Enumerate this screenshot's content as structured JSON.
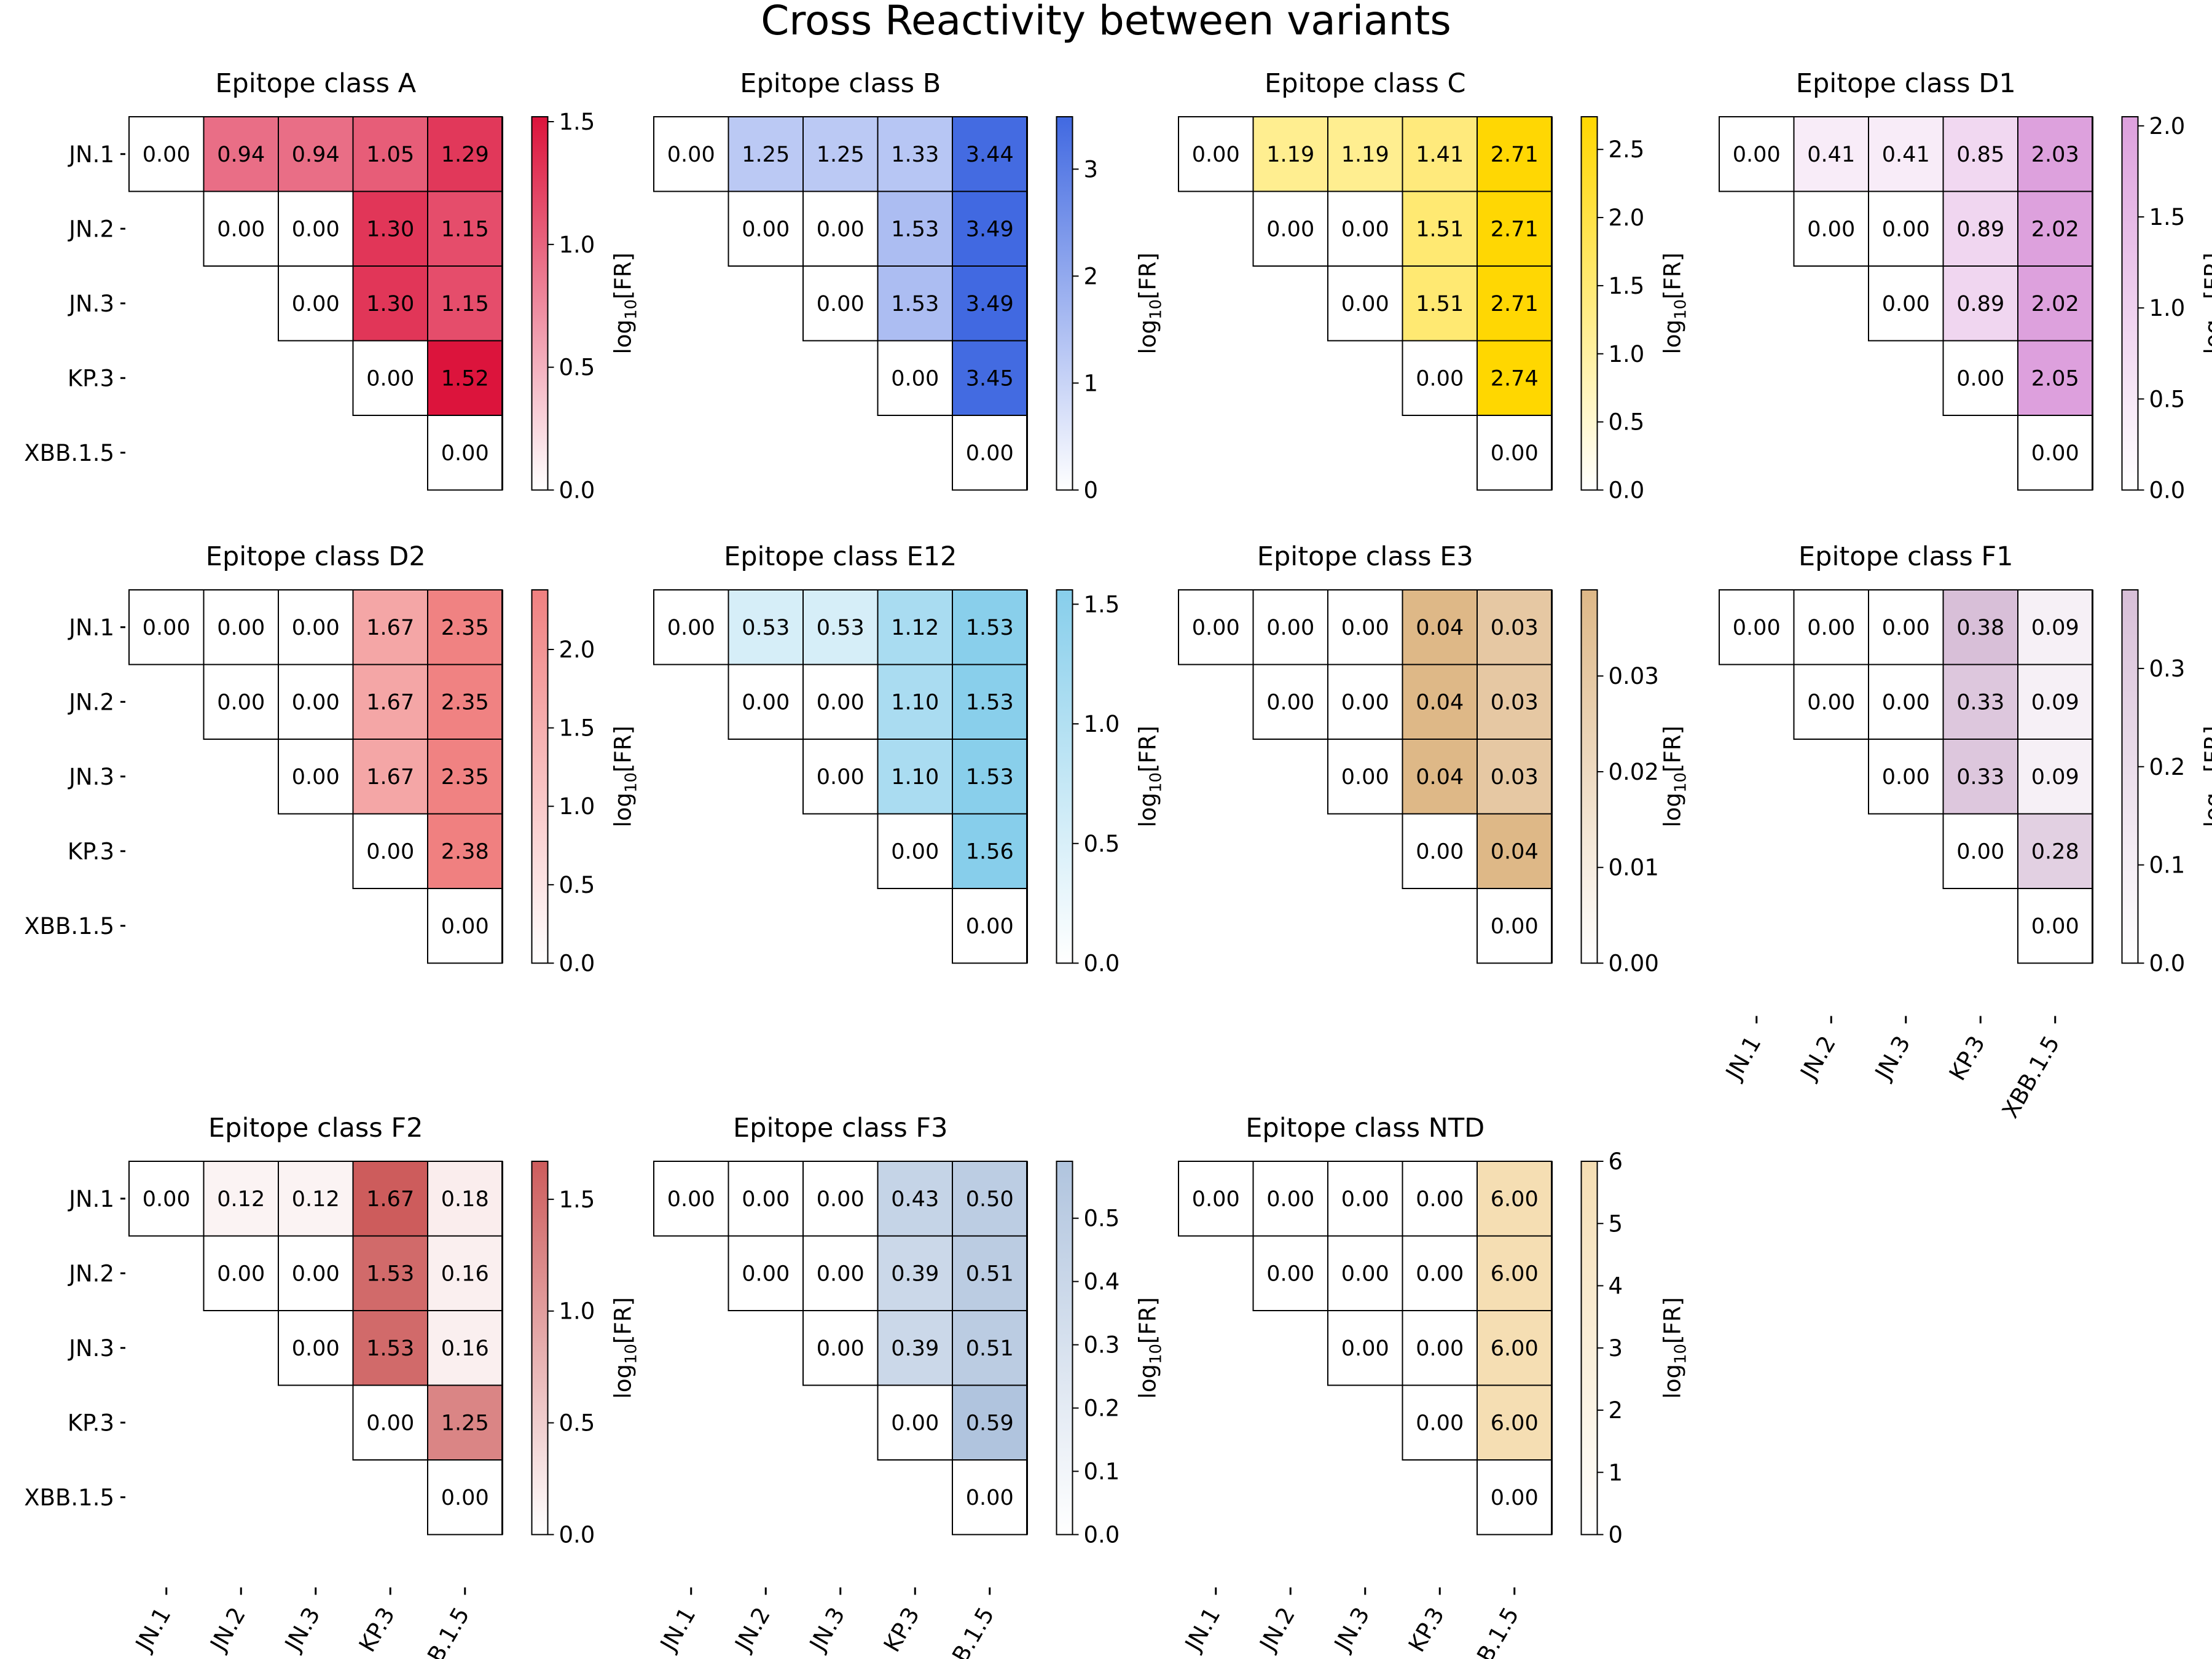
{
  "title": "Cross Reactivity between variants",
  "variants": [
    "JN.1",
    "JN.2",
    "JN.3",
    "KP.3",
    "XBB.1.5"
  ],
  "colorbar_label": {
    "prefix": "log",
    "sub": "10",
    "suffix": "[FR]"
  },
  "chart_data": [
    {
      "type": "heatmap",
      "title": "Epitope class A",
      "color": "#dc143c",
      "matrix": [
        [
          0.0,
          0.94,
          0.94,
          1.05,
          1.29
        ],
        [
          null,
          0.0,
          0.0,
          1.3,
          1.15
        ],
        [
          null,
          null,
          0.0,
          1.3,
          1.15
        ],
        [
          null,
          null,
          null,
          0.0,
          1.52
        ],
        [
          null,
          null,
          null,
          null,
          0.0
        ]
      ],
      "value_labels": [
        [
          "0.00",
          "0.94",
          "0.94",
          "1.05",
          "1.29"
        ],
        [
          null,
          "0.00",
          "0.00",
          "1.30",
          "1.15"
        ],
        [
          null,
          null,
          "0.00",
          "1.30",
          "1.15"
        ],
        [
          null,
          null,
          null,
          "0.00",
          "1.52"
        ],
        [
          null,
          null,
          null,
          null,
          "0.00"
        ]
      ],
      "vmin": 0,
      "vmax": 1.52,
      "cbar_ticks": [
        "0.0",
        "0.5",
        "1.0",
        "1.5"
      ],
      "cbar_tick_values": [
        0,
        0.5,
        1.0,
        1.5
      ]
    },
    {
      "type": "heatmap",
      "title": "Epitope class B",
      "color": "#4169e1",
      "matrix": [
        [
          0.0,
          1.25,
          1.25,
          1.33,
          3.44
        ],
        [
          null,
          0.0,
          0.0,
          1.53,
          3.49
        ],
        [
          null,
          null,
          0.0,
          1.53,
          3.49
        ],
        [
          null,
          null,
          null,
          0.0,
          3.45
        ],
        [
          null,
          null,
          null,
          null,
          0.0
        ]
      ],
      "value_labels": [
        [
          "0.00",
          "1.25",
          "1.25",
          "1.33",
          "3.44"
        ],
        [
          null,
          "0.00",
          "0.00",
          "1.53",
          "3.49"
        ],
        [
          null,
          null,
          "0.00",
          "1.53",
          "3.49"
        ],
        [
          null,
          null,
          null,
          "0.00",
          "3.45"
        ],
        [
          null,
          null,
          null,
          null,
          "0.00"
        ]
      ],
      "vmin": 0,
      "vmax": 3.49,
      "cbar_ticks": [
        "0",
        "1",
        "2",
        "3"
      ],
      "cbar_tick_values": [
        0,
        1,
        2,
        3
      ]
    },
    {
      "type": "heatmap",
      "title": "Epitope class C",
      "color": "#ffd700",
      "matrix": [
        [
          0.0,
          1.19,
          1.19,
          1.41,
          2.71
        ],
        [
          null,
          0.0,
          0.0,
          1.51,
          2.71
        ],
        [
          null,
          null,
          0.0,
          1.51,
          2.71
        ],
        [
          null,
          null,
          null,
          0.0,
          2.74
        ],
        [
          null,
          null,
          null,
          null,
          0.0
        ]
      ],
      "value_labels": [
        [
          "0.00",
          "1.19",
          "1.19",
          "1.41",
          "2.71"
        ],
        [
          null,
          "0.00",
          "0.00",
          "1.51",
          "2.71"
        ],
        [
          null,
          null,
          "0.00",
          "1.51",
          "2.71"
        ],
        [
          null,
          null,
          null,
          "0.00",
          "2.74"
        ],
        [
          null,
          null,
          null,
          null,
          "0.00"
        ]
      ],
      "vmin": 0,
      "vmax": 2.74,
      "cbar_ticks": [
        "0.0",
        "0.5",
        "1.0",
        "1.5",
        "2.0",
        "2.5"
      ],
      "cbar_tick_values": [
        0,
        0.5,
        1.0,
        1.5,
        2.0,
        2.5
      ]
    },
    {
      "type": "heatmap",
      "title": "Epitope class D1",
      "color": "#dda0dd",
      "matrix": [
        [
          0.0,
          0.41,
          0.41,
          0.85,
          2.03
        ],
        [
          null,
          0.0,
          0.0,
          0.89,
          2.02
        ],
        [
          null,
          null,
          0.0,
          0.89,
          2.02
        ],
        [
          null,
          null,
          null,
          0.0,
          2.05
        ],
        [
          null,
          null,
          null,
          null,
          0.0
        ]
      ],
      "value_labels": [
        [
          "0.00",
          "0.41",
          "0.41",
          "0.85",
          "2.03"
        ],
        [
          null,
          "0.00",
          "0.00",
          "0.89",
          "2.02"
        ],
        [
          null,
          null,
          "0.00",
          "0.89",
          "2.02"
        ],
        [
          null,
          null,
          null,
          "0.00",
          "2.05"
        ],
        [
          null,
          null,
          null,
          null,
          "0.00"
        ]
      ],
      "vmin": 0,
      "vmax": 2.05,
      "cbar_ticks": [
        "0.0",
        "0.5",
        "1.0",
        "1.5",
        "2.0"
      ],
      "cbar_tick_values": [
        0,
        0.5,
        1.0,
        1.5,
        2.0
      ]
    },
    {
      "type": "heatmap",
      "title": "Epitope class D2",
      "color": "#f08080",
      "matrix": [
        [
          0.0,
          0.0,
          0.0,
          1.67,
          2.35
        ],
        [
          null,
          0.0,
          0.0,
          1.67,
          2.35
        ],
        [
          null,
          null,
          0.0,
          1.67,
          2.35
        ],
        [
          null,
          null,
          null,
          0.0,
          2.38
        ],
        [
          null,
          null,
          null,
          null,
          0.0
        ]
      ],
      "value_labels": [
        [
          "0.00",
          "0.00",
          "0.00",
          "1.67",
          "2.35"
        ],
        [
          null,
          "0.00",
          "0.00",
          "1.67",
          "2.35"
        ],
        [
          null,
          null,
          "0.00",
          "1.67",
          "2.35"
        ],
        [
          null,
          null,
          null,
          "0.00",
          "2.38"
        ],
        [
          null,
          null,
          null,
          null,
          "0.00"
        ]
      ],
      "vmin": 0,
      "vmax": 2.38,
      "cbar_ticks": [
        "0.0",
        "0.5",
        "1.0",
        "1.5",
        "2.0"
      ],
      "cbar_tick_values": [
        0,
        0.5,
        1.0,
        1.5,
        2.0
      ]
    },
    {
      "type": "heatmap",
      "title": "Epitope class E12",
      "color": "#87ceeb",
      "matrix": [
        [
          0.0,
          0.53,
          0.53,
          1.12,
          1.53
        ],
        [
          null,
          0.0,
          0.0,
          1.1,
          1.53
        ],
        [
          null,
          null,
          0.0,
          1.1,
          1.53
        ],
        [
          null,
          null,
          null,
          0.0,
          1.56
        ],
        [
          null,
          null,
          null,
          null,
          0.0
        ]
      ],
      "value_labels": [
        [
          "0.00",
          "0.53",
          "0.53",
          "1.12",
          "1.53"
        ],
        [
          null,
          "0.00",
          "0.00",
          "1.10",
          "1.53"
        ],
        [
          null,
          null,
          "0.00",
          "1.10",
          "1.53"
        ],
        [
          null,
          null,
          null,
          "0.00",
          "1.56"
        ],
        [
          null,
          null,
          null,
          null,
          "0.00"
        ]
      ],
      "vmin": 0,
      "vmax": 1.56,
      "cbar_ticks": [
        "0.0",
        "0.5",
        "1.0",
        "1.5"
      ],
      "cbar_tick_values": [
        0,
        0.5,
        1.0,
        1.5
      ]
    },
    {
      "type": "heatmap",
      "title": "Epitope class E3",
      "color": "#deb887",
      "matrix": [
        [
          0.0,
          0.0,
          0.0,
          0.04,
          0.03
        ],
        [
          null,
          0.0,
          0.0,
          0.04,
          0.03
        ],
        [
          null,
          null,
          0.0,
          0.04,
          0.03
        ],
        [
          null,
          null,
          null,
          0.0,
          0.04
        ],
        [
          null,
          null,
          null,
          null,
          0.0
        ]
      ],
      "value_labels": [
        [
          "0.00",
          "0.00",
          "0.00",
          "0.04",
          "0.03"
        ],
        [
          null,
          "0.00",
          "0.00",
          "0.04",
          "0.03"
        ],
        [
          null,
          null,
          "0.00",
          "0.04",
          "0.03"
        ],
        [
          null,
          null,
          null,
          "0.00",
          "0.04"
        ],
        [
          null,
          null,
          null,
          null,
          "0.00"
        ]
      ],
      "vmin": 0,
      "vmax": 0.039,
      "cbar_ticks": [
        "0.00",
        "0.01",
        "0.02",
        "0.03"
      ],
      "cbar_tick_values": [
        0,
        0.01,
        0.02,
        0.03
      ]
    },
    {
      "type": "heatmap",
      "title": "Epitope class F1",
      "color": "#d8bfd8",
      "matrix": [
        [
          0.0,
          0.0,
          0.0,
          0.38,
          0.09
        ],
        [
          null,
          0.0,
          0.0,
          0.33,
          0.09
        ],
        [
          null,
          null,
          0.0,
          0.33,
          0.09
        ],
        [
          null,
          null,
          null,
          0.0,
          0.28
        ],
        [
          null,
          null,
          null,
          null,
          0.0
        ]
      ],
      "value_labels": [
        [
          "0.00",
          "0.00",
          "0.00",
          "0.38",
          "0.09"
        ],
        [
          null,
          "0.00",
          "0.00",
          "0.33",
          "0.09"
        ],
        [
          null,
          null,
          "0.00",
          "0.33",
          "0.09"
        ],
        [
          null,
          null,
          null,
          "0.00",
          "0.28"
        ],
        [
          null,
          null,
          null,
          null,
          "0.00"
        ]
      ],
      "vmin": 0,
      "vmax": 0.38,
      "cbar_ticks": [
        "0.0",
        "0.1",
        "0.2",
        "0.3"
      ],
      "cbar_tick_values": [
        0,
        0.1,
        0.2,
        0.3
      ]
    },
    {
      "type": "heatmap",
      "title": "Epitope class F2",
      "color": "#cd5c5c",
      "matrix": [
        [
          0.0,
          0.12,
          0.12,
          1.67,
          0.18
        ],
        [
          null,
          0.0,
          0.0,
          1.53,
          0.16
        ],
        [
          null,
          null,
          0.0,
          1.53,
          0.16
        ],
        [
          null,
          null,
          null,
          0.0,
          1.25
        ],
        [
          null,
          null,
          null,
          null,
          0.0
        ]
      ],
      "value_labels": [
        [
          "0.00",
          "0.12",
          "0.12",
          "1.67",
          "0.18"
        ],
        [
          null,
          "0.00",
          "0.00",
          "1.53",
          "0.16"
        ],
        [
          null,
          null,
          "0.00",
          "1.53",
          "0.16"
        ],
        [
          null,
          null,
          null,
          "0.00",
          "1.25"
        ],
        [
          null,
          null,
          null,
          null,
          "0.00"
        ]
      ],
      "vmin": 0,
      "vmax": 1.67,
      "cbar_ticks": [
        "0.0",
        "0.5",
        "1.0",
        "1.5"
      ],
      "cbar_tick_values": [
        0,
        0.5,
        1.0,
        1.5
      ]
    },
    {
      "type": "heatmap",
      "title": "Epitope class F3",
      "color": "#b0c4de",
      "matrix": [
        [
          0.0,
          0.0,
          0.0,
          0.43,
          0.5
        ],
        [
          null,
          0.0,
          0.0,
          0.39,
          0.51
        ],
        [
          null,
          null,
          0.0,
          0.39,
          0.51
        ],
        [
          null,
          null,
          null,
          0.0,
          0.59
        ],
        [
          null,
          null,
          null,
          null,
          0.0
        ]
      ],
      "value_labels": [
        [
          "0.00",
          "0.00",
          "0.00",
          "0.43",
          "0.50"
        ],
        [
          null,
          "0.00",
          "0.00",
          "0.39",
          "0.51"
        ],
        [
          null,
          null,
          "0.00",
          "0.39",
          "0.51"
        ],
        [
          null,
          null,
          null,
          "0.00",
          "0.59"
        ],
        [
          null,
          null,
          null,
          null,
          "0.00"
        ]
      ],
      "vmin": 0,
      "vmax": 0.59,
      "cbar_ticks": [
        "0.0",
        "0.1",
        "0.2",
        "0.3",
        "0.4",
        "0.5"
      ],
      "cbar_tick_values": [
        0,
        0.1,
        0.2,
        0.3,
        0.4,
        0.5
      ]
    },
    {
      "type": "heatmap",
      "title": "Epitope class NTD",
      "color": "#f5deb3",
      "matrix": [
        [
          0.0,
          0.0,
          0.0,
          0.0,
          6.0
        ],
        [
          null,
          0.0,
          0.0,
          0.0,
          6.0
        ],
        [
          null,
          null,
          0.0,
          0.0,
          6.0
        ],
        [
          null,
          null,
          null,
          0.0,
          6.0
        ],
        [
          null,
          null,
          null,
          null,
          0.0
        ]
      ],
      "value_labels": [
        [
          "0.00",
          "0.00",
          "0.00",
          "0.00",
          "6.00"
        ],
        [
          null,
          "0.00",
          "0.00",
          "0.00",
          "6.00"
        ],
        [
          null,
          null,
          "0.00",
          "0.00",
          "6.00"
        ],
        [
          null,
          null,
          null,
          "0.00",
          "6.00"
        ],
        [
          null,
          null,
          null,
          null,
          "0.00"
        ]
      ],
      "vmin": 0,
      "vmax": 6,
      "cbar_ticks": [
        "0",
        "1",
        "2",
        "3",
        "4",
        "5",
        "6"
      ],
      "cbar_tick_values": [
        0,
        1,
        2,
        3,
        4,
        5,
        6
      ]
    }
  ]
}
